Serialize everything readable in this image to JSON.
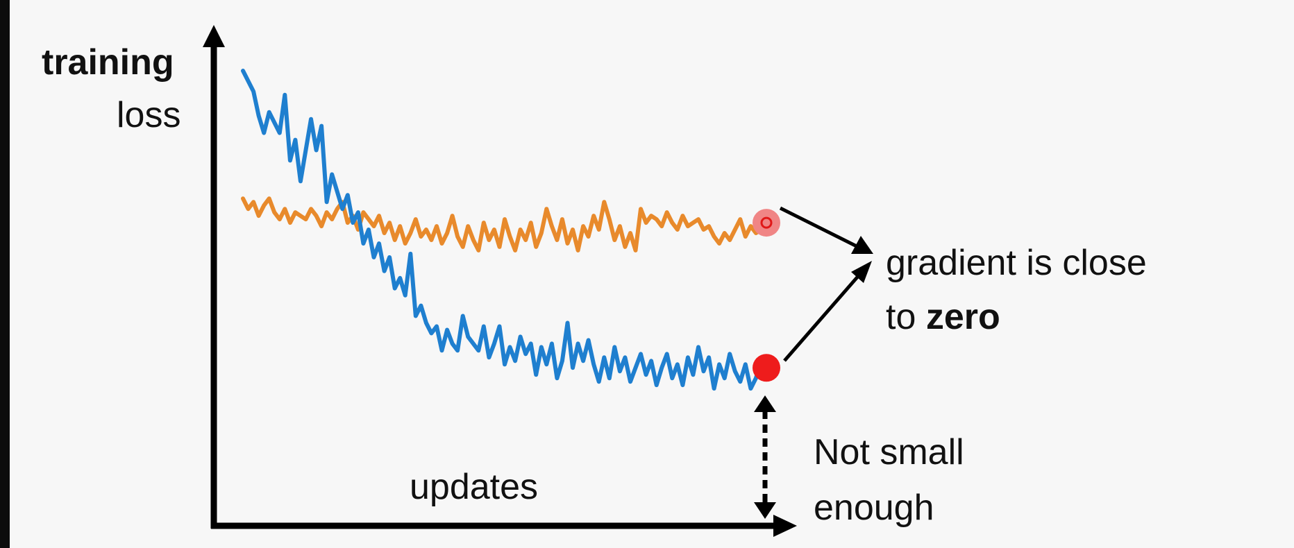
{
  "chart_data": {
    "type": "line",
    "ylabel_bold": "training",
    "ylabel_rest": "loss",
    "xlabel": "updates",
    "annotations": {
      "gradient_line1": "gradient is close",
      "gradient_line2_prefix": "to ",
      "gradient_line2_bold": "zero",
      "not_small_line1": "Not small",
      "not_small_line2": "enough"
    },
    "xlim": [
      0,
      100
    ],
    "ylim": [
      0,
      100
    ],
    "series": [
      {
        "color": "#1f7fcf",
        "x": [
          0,
          2,
          3,
          4,
          5,
          7,
          8,
          9,
          10,
          11,
          13,
          14,
          15,
          16,
          17,
          19,
          20,
          21,
          22,
          23,
          24,
          25,
          26,
          27,
          28,
          29,
          30,
          31,
          32,
          33,
          34,
          35,
          36,
          37,
          38,
          39,
          40,
          41,
          42,
          43,
          45,
          46,
          47,
          48,
          49,
          50,
          51,
          52,
          53,
          54,
          55,
          56,
          57,
          58,
          59,
          60,
          61,
          62,
          63,
          64,
          65,
          66,
          67,
          68,
          69,
          70,
          71,
          72,
          73,
          74,
          75,
          76,
          77,
          78,
          79,
          80,
          81,
          82,
          83,
          84,
          85,
          86,
          87,
          88,
          89,
          90,
          91,
          92,
          93,
          94,
          95,
          96,
          97,
          98,
          99,
          100
        ],
        "y": [
          98,
          92,
          85,
          80,
          86,
          80,
          91,
          72,
          78,
          66,
          84,
          75,
          82,
          60,
          68,
          58,
          62,
          54,
          57,
          48,
          52,
          44,
          48,
          40,
          44,
          35,
          38,
          33,
          45,
          27,
          30,
          25,
          22,
          24,
          17,
          23,
          19,
          17,
          27,
          21,
          17,
          24,
          15,
          19,
          24,
          13,
          18,
          14,
          21,
          16,
          19,
          10,
          18,
          13,
          19,
          9,
          14,
          25,
          12,
          19,
          14,
          20,
          13,
          8,
          15,
          9,
          18,
          11,
          15,
          8,
          12,
          16,
          10,
          14,
          7,
          12,
          16,
          9,
          13,
          7,
          15,
          10,
          18,
          11,
          15,
          6,
          13,
          9,
          16,
          11,
          8,
          13,
          6,
          9,
          14,
          12
        ]
      },
      {
        "color": "#e88a2c",
        "x": [
          0,
          1,
          2,
          3,
          4,
          5,
          6,
          7,
          8,
          9,
          10,
          11,
          12,
          13,
          14,
          15,
          16,
          17,
          18,
          19,
          20,
          21,
          22,
          23,
          24,
          25,
          26,
          27,
          28,
          29,
          30,
          31,
          32,
          33,
          34,
          35,
          36,
          37,
          38,
          39,
          40,
          41,
          42,
          43,
          44,
          45,
          46,
          47,
          48,
          49,
          50,
          51,
          52,
          53,
          54,
          55,
          56,
          57,
          58,
          59,
          60,
          61,
          62,
          63,
          64,
          65,
          66,
          67,
          68,
          69,
          70,
          71,
          72,
          73,
          74,
          75,
          76,
          77,
          78,
          79,
          80,
          81,
          82,
          83,
          84,
          85,
          86,
          87,
          88,
          89,
          90,
          91,
          92,
          93,
          94,
          95,
          96,
          97,
          98,
          99,
          100
        ],
        "y": [
          61,
          58,
          60,
          56,
          59,
          61,
          57,
          55,
          58,
          54,
          57,
          56,
          55,
          58,
          56,
          53,
          57,
          55,
          58,
          60,
          54,
          56,
          52,
          57,
          55,
          53,
          56,
          51,
          54,
          49,
          53,
          48,
          51,
          55,
          50,
          52,
          49,
          53,
          48,
          51,
          56,
          50,
          47,
          53,
          49,
          46,
          54,
          49,
          52,
          47,
          55,
          50,
          46,
          52,
          49,
          54,
          47,
          51,
          58,
          53,
          49,
          55,
          48,
          52,
          46,
          53,
          50,
          56,
          52,
          60,
          55,
          49,
          53,
          47,
          51,
          46,
          58,
          54,
          56,
          55,
          53,
          57,
          54,
          52,
          56,
          53,
          54,
          55,
          52,
          53,
          50,
          48,
          51,
          49,
          52,
          55,
          50,
          53,
          51,
          52,
          54
        ]
      }
    ],
    "markers": [
      {
        "series": 0,
        "x": 100,
        "y": 12,
        "color": "#ee1c1c"
      },
      {
        "series": 1,
        "x": 100,
        "y": 54,
        "color": "#f08585"
      }
    ]
  }
}
